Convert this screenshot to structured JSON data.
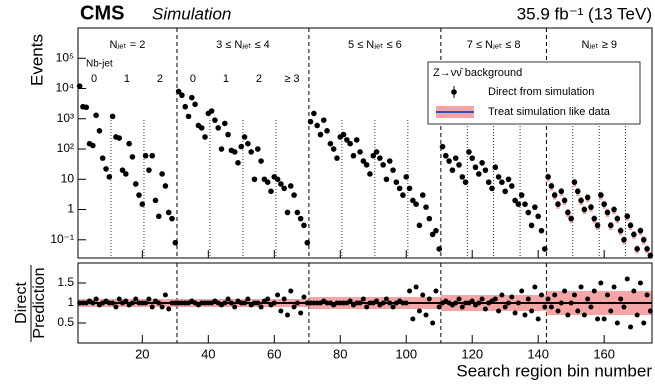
{
  "chart_data": {
    "type": "scatter",
    "experiment": "CMS",
    "status": "Simulation",
    "lumi": "35.9 fb⁻¹ (13 TeV)",
    "ylabel": "Events",
    "ratio_ylabel": [
      "Direct",
      "Prediction"
    ],
    "xlabel": "Search region bin number",
    "legend_title": "Z→νν̄ background",
    "group_labels": [
      "Nⱼₑₜ = 2",
      "3 ≤ Nⱼₑₜ ≤ 4",
      "5 ≤ Nⱼₑₜ ≤ 6",
      "7 ≤ Nⱼₑₜ ≤ 8",
      "Nⱼₑₜ ≥ 9"
    ],
    "group_edges": [
      30.5,
      70.5,
      110.5,
      142.5
    ],
    "nb_title": "Nb-jet",
    "nb_labels": [
      [
        "0",
        "1",
        "2"
      ],
      [
        "0",
        "1",
        "2",
        "≥ 3"
      ]
    ],
    "nb_edges": [
      10.5,
      20.5,
      40.5,
      50.5,
      60.5,
      80.5,
      90.5,
      100.5,
      118.5,
      126.5,
      134.5,
      150.5,
      158.5,
      166.5
    ],
    "x": [
      1,
      2,
      3,
      4,
      5,
      6,
      7,
      8,
      9,
      10,
      11,
      12,
      13,
      14,
      15,
      16,
      17,
      18,
      19,
      20,
      21,
      22,
      23,
      24,
      25,
      26,
      27,
      28,
      29,
      30,
      31,
      32,
      33,
      34,
      35,
      36,
      37,
      38,
      39,
      40,
      41,
      42,
      43,
      44,
      45,
      46,
      47,
      48,
      49,
      50,
      51,
      52,
      53,
      54,
      55,
      56,
      57,
      58,
      59,
      60,
      61,
      62,
      63,
      64,
      65,
      66,
      67,
      68,
      69,
      70,
      71,
      72,
      73,
      74,
      75,
      76,
      77,
      78,
      79,
      80,
      81,
      82,
      83,
      84,
      85,
      86,
      87,
      88,
      89,
      90,
      91,
      92,
      93,
      94,
      95,
      96,
      97,
      98,
      99,
      100,
      101,
      102,
      103,
      104,
      105,
      106,
      107,
      108,
      109,
      110,
      111,
      112,
      113,
      114,
      115,
      116,
      117,
      118,
      119,
      120,
      121,
      122,
      123,
      124,
      125,
      126,
      127,
      128,
      129,
      130,
      131,
      132,
      133,
      134,
      135,
      136,
      137,
      138,
      139,
      140,
      141,
      142,
      143,
      144,
      145,
      146,
      147,
      148,
      149,
      150,
      151,
      152,
      153,
      154,
      155,
      156,
      157,
      158,
      159,
      160,
      161,
      162,
      163,
      164,
      165,
      166,
      167,
      168,
      169,
      170,
      171,
      172,
      173,
      174
    ],
    "series": [
      {
        "name": "Direct from simulation",
        "color": "#000000",
        "values": [
          12000,
          2500,
          2400,
          150,
          130,
          1300,
          400,
          50,
          22,
          12,
          1200,
          250,
          230,
          20,
          15,
          150,
          55,
          7,
          3,
          1.5,
          60,
          20,
          60,
          2,
          0.6,
          15,
          6,
          0.8,
          0.5,
          0.08,
          8000,
          6000,
          2500,
          1200,
          5000,
          3000,
          600,
          500,
          250,
          1500,
          1800,
          900,
          500,
          100,
          700,
          300,
          90,
          80,
          35,
          120,
          250,
          150,
          80,
          10,
          100,
          40,
          10,
          8,
          4,
          12,
          10,
          7,
          5,
          0.8,
          6,
          3,
          0.8,
          0.5,
          0.3,
          0.08,
          800,
          1500,
          600,
          300,
          900,
          400,
          150,
          100,
          50,
          250,
          300,
          200,
          150,
          60,
          200,
          80,
          40,
          30,
          15,
          60,
          80,
          50,
          30,
          10,
          40,
          20,
          8,
          5,
          3,
          12,
          5,
          2,
          1.5,
          0.3,
          3,
          1.2,
          0.5,
          0.15,
          0.2,
          0.05,
          120,
          60,
          40,
          20,
          50,
          30,
          12,
          8,
          80,
          50,
          25,
          15,
          35,
          20,
          8,
          5,
          25,
          12,
          8,
          4,
          10,
          6,
          2,
          1.5,
          3,
          1.5,
          0.8,
          0.3,
          1.2,
          0.6,
          0.2,
          0.05,
          12,
          6,
          3,
          1.5,
          4,
          2,
          0.8,
          0.5,
          8,
          4,
          2,
          1,
          2.5,
          1.2,
          0.5,
          0.3,
          3,
          1.5,
          0.8,
          0.3,
          1,
          0.5,
          0.2,
          0.1,
          0.6,
          0.3,
          0.15,
          0.05,
          0.2,
          0.1,
          0.05,
          0.03
        ]
      },
      {
        "name": "Treat simulation like data",
        "color": "#f08080",
        "line_color": "#3050c0",
        "group_errors": [
          0.1,
          0.1,
          0.15,
          0.2,
          0.3
        ]
      }
    ],
    "ratio": [
      1,
      1,
      1,
      1.05,
      1,
      1.1,
      0.95,
      1,
      1.05,
      1,
      1,
      0.9,
      1.1,
      1,
      1.05,
      0.95,
      1,
      1.1,
      1,
      1,
      1,
      1.1,
      0.9,
      1.05,
      1,
      0.9,
      1.2,
      0.85,
      1,
      1,
      1,
      1,
      1,
      1,
      1.05,
      1,
      0.95,
      1,
      1,
      1,
      1,
      1.05,
      1,
      0.95,
      1,
      1.1,
      1,
      0.9,
      1.05,
      1,
      1,
      1.1,
      0.95,
      1,
      1,
      0.9,
      1.05,
      1.1,
      0.95,
      1,
      1.2,
      0.8,
      1.1,
      0.7,
      1.3,
      0.9,
      1,
      0.75,
      1.15,
      1,
      1,
      1,
      1,
      1,
      1.05,
      1,
      1,
      0.95,
      1,
      1,
      1,
      1,
      1.05,
      0.95,
      1,
      1,
      1.1,
      0.9,
      1,
      1,
      1.05,
      0.95,
      1,
      1.1,
      1,
      0.9,
      1,
      1.05,
      1,
      1,
      1.3,
      0.6,
      1.4,
      0.8,
      1.2,
      0.7,
      1.1,
      0.5,
      1.3,
      0.9,
      1,
      1.05,
      1,
      0.95,
      1,
      1.1,
      0.9,
      1,
      1,
      1.05,
      0.95,
      1,
      1.1,
      0.85,
      1,
      1.05,
      1.1,
      0.8,
      1.2,
      0.9,
      1,
      1.15,
      0.75,
      1,
      1.3,
      0.7,
      1.1,
      0.8,
      1.4,
      0.6,
      1.2,
      0.9,
      1.1,
      0.9,
      1.2,
      0.8,
      1,
      1.3,
      0.7,
      1,
      1.2,
      0.8,
      1.4,
      0.7,
      1.1,
      0.9,
      1.3,
      0.6,
      1.5,
      0.6,
      1.2,
      0.8,
      1.4,
      0.5,
      1.1,
      0.9,
      1.6,
      0.4,
      1.3,
      0.7,
      1.5,
      0.5,
      1.2,
      0.8
    ],
    "xlim": [
      0.5,
      174.5
    ],
    "xticks": [
      20,
      40,
      60,
      80,
      100,
      120,
      140,
      160
    ],
    "ylim": [
      0.025,
      1000000
    ],
    "log_y": true,
    "yticks": [
      {
        "value": 0.1,
        "label": "10⁻¹"
      },
      1,
      10,
      {
        "value": 100,
        "label": "10²"
      },
      {
        "value": 1000,
        "label": "10³"
      },
      {
        "value": 10000,
        "label": "10⁴"
      },
      {
        "value": 100000,
        "label": "10⁵"
      }
    ],
    "ratio_ylim": [
      0,
      2
    ],
    "ratio_yticks": [
      0.5,
      1,
      1.5
    ],
    "ratio_ref": 1,
    "legend": "upper right"
  }
}
